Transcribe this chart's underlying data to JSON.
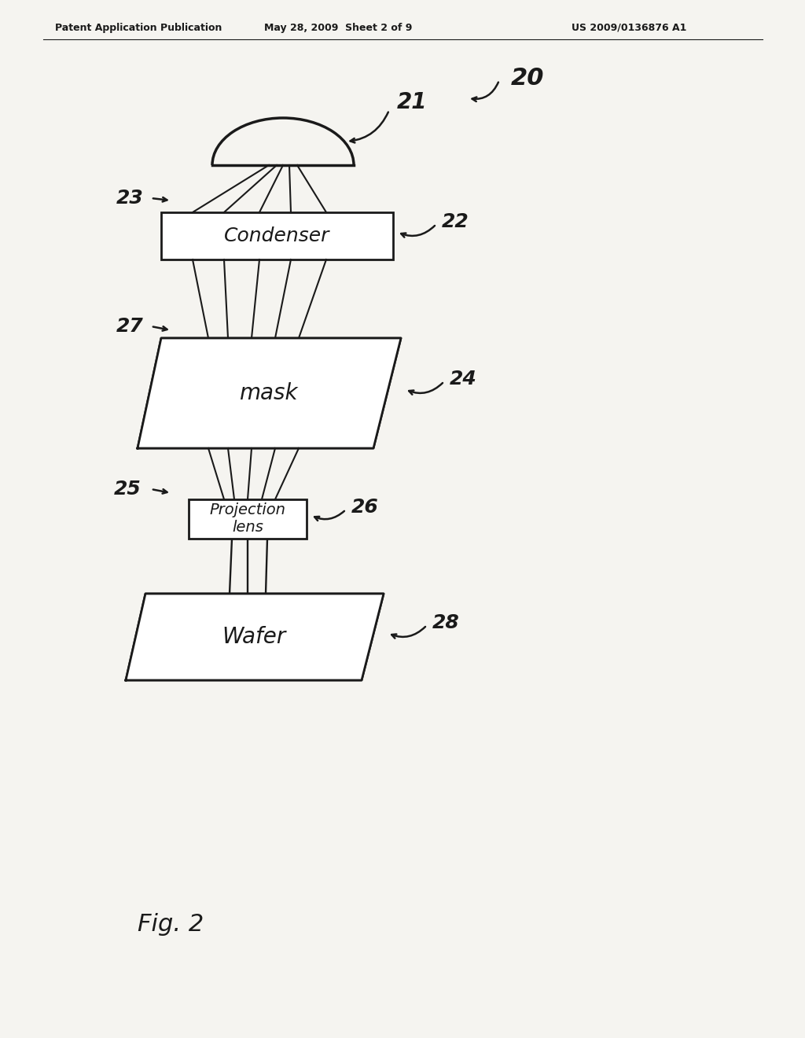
{
  "bg_color": "#f5f4f0",
  "text_color": "#1a1a1a",
  "header_left": "Patent Application Publication",
  "header_mid": "May 28, 2009  Sheet 2 of 9",
  "header_right": "US 2009/0136876 A1",
  "fig_label": "Fig. 2",
  "diagram_ref": "20",
  "lamp_label": "21",
  "light_rays_label": "23",
  "condenser_label": "Condenser",
  "condenser_ref": "22",
  "mask_rays_label": "27",
  "mask_label": "mask",
  "mask_ref": "24",
  "proj_rays_label": "25",
  "proj_lens_label": "Projection\nlens",
  "proj_lens_ref": "26",
  "wafer_label": "Wafer",
  "wafer_ref": "28",
  "lw": 2.0
}
